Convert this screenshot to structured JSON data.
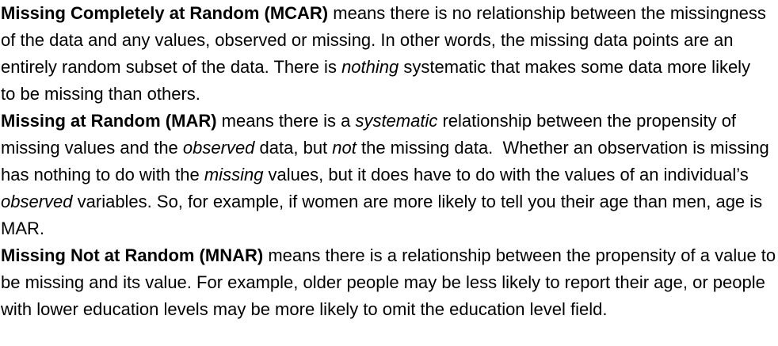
{
  "paragraphs": {
    "mcar": {
      "term": "Missing Completely at Random (MCAR)",
      "t1": " means there is no relationship between the missingness of the data and any values, observed or missing. In other words, the missing data points are an entirely random subset of the data. There is ",
      "e1": "nothing",
      "t2": " systematic that makes some data more likely to be missing than others."
    },
    "mar": {
      "term": "Missing at Random (MAR)",
      "t1": " means there is a ",
      "e1": "systematic",
      "t2": " relationship between the propensity of missing values and the ",
      "e2": "observed",
      "t3": " data, but ",
      "e3": "not",
      "t4": " the missing data.  Whether an observation is missing has nothing to do with the ",
      "e4": "missing",
      "t5": " values, but it does have to do with the values of an individual’s ",
      "e5": "observed",
      "t6": " variables. So, for example, if women are more likely to tell you their age than men, age is MAR."
    },
    "mnar": {
      "term": "Missing Not at Random (MNAR)",
      "t1": " means there is a relationship between the propensity of a value to be missing and its value. For example, older people may be less likely to report their age, or people with lower education levels may be more likely to omit the education level field."
    }
  }
}
